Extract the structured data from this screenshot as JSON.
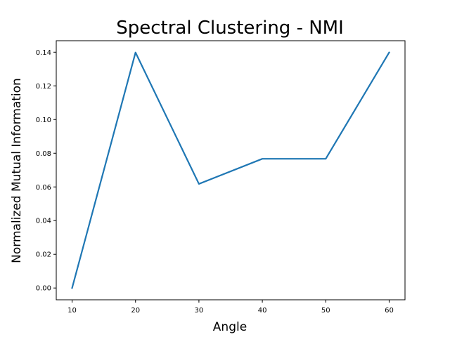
{
  "chart_data": {
    "type": "line",
    "title": "Spectral Clustering - NMI",
    "xlabel": "Angle",
    "ylabel": "Normalized Mutual Information",
    "x": [
      10,
      20,
      30,
      40,
      50,
      60
    ],
    "series": [
      {
        "values": [
          0.0,
          0.1398,
          0.0618,
          0.0767,
          0.0767,
          0.1398
        ],
        "color": "#1f77b4"
      }
    ],
    "xticks": [
      10,
      20,
      30,
      40,
      50,
      60
    ],
    "yticks": [
      0.0,
      0.02,
      0.04,
      0.06,
      0.08,
      0.1,
      0.12,
      0.14
    ],
    "ytick_labels": [
      "0.00",
      "0.02",
      "0.04",
      "0.06",
      "0.08",
      "0.10",
      "0.12",
      "0.14"
    ],
    "xlim": [
      7.5,
      62.5
    ],
    "ylim": [
      -0.007,
      0.1468
    ],
    "grid": false
  }
}
